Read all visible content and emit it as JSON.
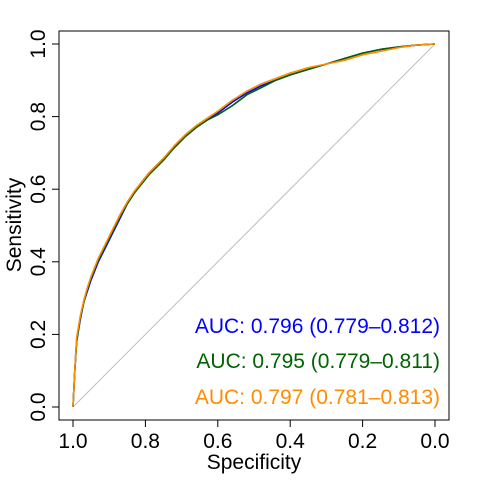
{
  "chart_data": {
    "type": "line",
    "title": "",
    "xlabel": "Specificity",
    "ylabel": "Sensitivity",
    "xlim": [
      1.0,
      0.0
    ],
    "ylim": [
      0.0,
      1.0
    ],
    "x_axis_reversed": true,
    "grid": false,
    "xticks": [
      "1.0",
      "0.8",
      "0.6",
      "0.4",
      "0.2",
      "0.0"
    ],
    "yticks": [
      "0.0",
      "0.2",
      "0.4",
      "0.6",
      "0.8",
      "1.0"
    ],
    "reference_line": {
      "from": [
        1.0,
        0.0
      ],
      "to": [
        0.0,
        1.0
      ],
      "color": "#bebebe"
    },
    "series": [
      {
        "color": "#0000ff",
        "x": [
          1.0,
          0.995,
          0.99,
          0.98,
          0.97,
          0.96,
          0.95,
          0.93,
          0.91,
          0.89,
          0.87,
          0.85,
          0.83,
          0.81,
          0.79,
          0.77,
          0.75,
          0.72,
          0.69,
          0.66,
          0.63,
          0.6,
          0.56,
          0.52,
          0.48,
          0.44,
          0.4,
          0.35,
          0.3,
          0.25,
          0.2,
          0.15,
          0.1,
          0.05,
          0.0
        ],
        "y": [
          0.0,
          0.1,
          0.18,
          0.24,
          0.29,
          0.32,
          0.35,
          0.4,
          0.44,
          0.48,
          0.52,
          0.56,
          0.59,
          0.62,
          0.645,
          0.665,
          0.685,
          0.715,
          0.745,
          0.77,
          0.79,
          0.81,
          0.84,
          0.865,
          0.885,
          0.9,
          0.915,
          0.93,
          0.945,
          0.96,
          0.975,
          0.985,
          0.992,
          0.997,
          1.0
        ]
      },
      {
        "color": "#006400",
        "x": [
          1.0,
          0.995,
          0.99,
          0.98,
          0.97,
          0.96,
          0.95,
          0.93,
          0.91,
          0.89,
          0.87,
          0.85,
          0.83,
          0.81,
          0.79,
          0.77,
          0.75,
          0.72,
          0.69,
          0.66,
          0.63,
          0.6,
          0.56,
          0.52,
          0.48,
          0.44,
          0.4,
          0.35,
          0.3,
          0.25,
          0.2,
          0.15,
          0.1,
          0.05,
          0.0
        ],
        "y": [
          0.0,
          0.1,
          0.18,
          0.245,
          0.29,
          0.325,
          0.355,
          0.405,
          0.445,
          0.485,
          0.525,
          0.56,
          0.59,
          0.615,
          0.64,
          0.66,
          0.68,
          0.715,
          0.745,
          0.77,
          0.79,
          0.805,
          0.83,
          0.86,
          0.88,
          0.9,
          0.915,
          0.93,
          0.945,
          0.96,
          0.975,
          0.985,
          0.992,
          0.997,
          1.0
        ]
      },
      {
        "color": "#ff8c00",
        "x": [
          1.0,
          0.995,
          0.99,
          0.98,
          0.97,
          0.96,
          0.95,
          0.93,
          0.91,
          0.89,
          0.87,
          0.85,
          0.83,
          0.81,
          0.79,
          0.77,
          0.75,
          0.72,
          0.69,
          0.66,
          0.63,
          0.6,
          0.56,
          0.52,
          0.48,
          0.44,
          0.4,
          0.35,
          0.3,
          0.25,
          0.2,
          0.15,
          0.1,
          0.05,
          0.0
        ],
        "y": [
          0.0,
          0.1,
          0.19,
          0.25,
          0.295,
          0.33,
          0.36,
          0.41,
          0.45,
          0.49,
          0.53,
          0.565,
          0.595,
          0.62,
          0.645,
          0.665,
          0.685,
          0.72,
          0.75,
          0.775,
          0.795,
          0.815,
          0.845,
          0.87,
          0.89,
          0.905,
          0.92,
          0.935,
          0.945,
          0.955,
          0.97,
          0.98,
          0.99,
          0.997,
          1.0
        ]
      }
    ],
    "annotations": [
      {
        "text": "AUC: 0.796 (0.779–0.812)",
        "color": "#0000ff"
      },
      {
        "text": "AUC: 0.795 (0.779–0.811)",
        "color": "#006400"
      },
      {
        "text": "AUC: 0.797 (0.781–0.813)",
        "color": "#ff8c00"
      }
    ]
  }
}
